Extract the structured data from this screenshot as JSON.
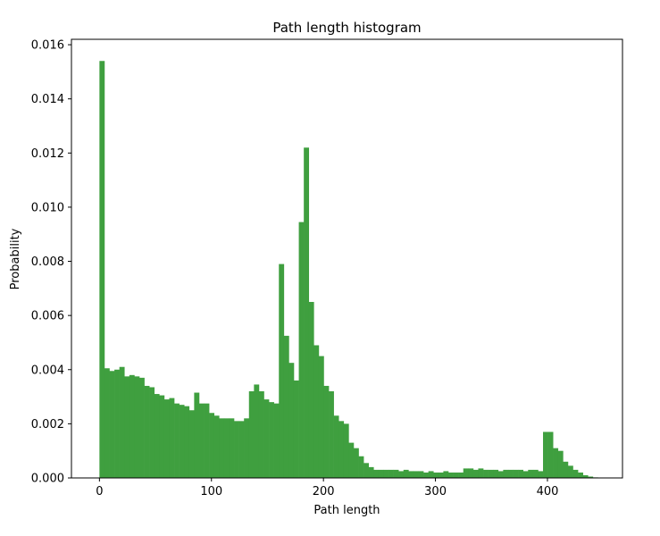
{
  "chart_data": {
    "type": "bar",
    "title": "Path length histogram",
    "xlabel": "Path length",
    "ylabel": "Probability",
    "xlim": [
      -25,
      467
    ],
    "ylim": [
      0,
      0.0162
    ],
    "grid": false,
    "color": "#3f9f3f",
    "bin_width": 4.45,
    "bin_start": 0,
    "xticks": [
      {
        "value": 0,
        "label": "0"
      },
      {
        "value": 100,
        "label": "100"
      },
      {
        "value": 200,
        "label": "200"
      },
      {
        "value": 300,
        "label": "300"
      },
      {
        "value": 400,
        "label": "400"
      }
    ],
    "yticks": [
      {
        "value": 0,
        "label": "0.000"
      },
      {
        "value": 0.002,
        "label": "0.002"
      },
      {
        "value": 0.004,
        "label": "0.004"
      },
      {
        "value": 0.006,
        "label": "0.006"
      },
      {
        "value": 0.008,
        "label": "0.008"
      },
      {
        "value": 0.01,
        "label": "0.010"
      },
      {
        "value": 0.012,
        "label": "0.012"
      },
      {
        "value": 0.014,
        "label": "0.014"
      },
      {
        "value": 0.016,
        "label": "0.016"
      }
    ],
    "values": [
      0.0154,
      0.00405,
      0.00395,
      0.004,
      0.0041,
      0.00375,
      0.0038,
      0.00375,
      0.0037,
      0.0034,
      0.00335,
      0.0031,
      0.00305,
      0.0029,
      0.00295,
      0.00275,
      0.0027,
      0.00265,
      0.0025,
      0.00315,
      0.00275,
      0.00275,
      0.0024,
      0.0023,
      0.0022,
      0.0022,
      0.0022,
      0.0021,
      0.0021,
      0.0022,
      0.0032,
      0.00345,
      0.0032,
      0.0029,
      0.0028,
      0.00275,
      0.0079,
      0.00525,
      0.00425,
      0.0036,
      0.00945,
      0.0122,
      0.0065,
      0.0049,
      0.0045,
      0.0034,
      0.0032,
      0.0023,
      0.0021,
      0.002,
      0.0013,
      0.0011,
      0.0008,
      0.00055,
      0.0004,
      0.0003,
      0.0003,
      0.0003,
      0.0003,
      0.0003,
      0.00025,
      0.0003,
      0.00025,
      0.00025,
      0.00025,
      0.0002,
      0.00025,
      0.0002,
      0.0002,
      0.00025,
      0.0002,
      0.0002,
      0.0002,
      0.00035,
      0.00035,
      0.0003,
      0.00035,
      0.0003,
      0.0003,
      0.0003,
      0.00025,
      0.0003,
      0.0003,
      0.0003,
      0.0003,
      0.00025,
      0.0003,
      0.0003,
      0.00025,
      0.0017,
      0.0017,
      0.0011,
      0.001,
      0.0006,
      0.00045,
      0.0003,
      0.0002,
      0.0001,
      5e-05,
      2e-05
    ]
  }
}
